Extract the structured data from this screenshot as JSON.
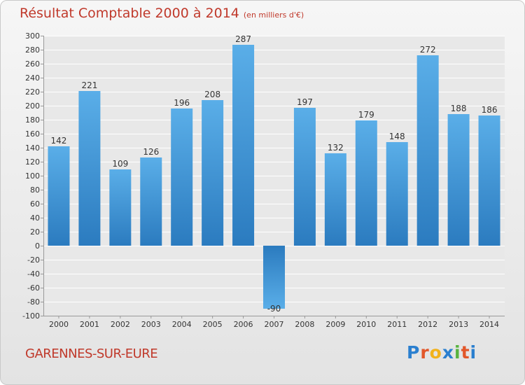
{
  "header": {
    "title": "Résultat Comptable 2000 à 2014",
    "unit": "(en milliers d'€)"
  },
  "footer": {
    "city": "GARENNES-SUR-EURE",
    "logo": [
      "P",
      "r",
      "o",
      "x",
      "i",
      "t",
      "i"
    ]
  },
  "colors": {
    "title": "#c0392b",
    "bar_top": "#5aaee8",
    "bar_bottom": "#2b7bbf"
  },
  "chart_data": {
    "type": "bar",
    "title": "Résultat Comptable 2000 à 2014",
    "subtitle": "(en milliers d'€)",
    "xlabel": "",
    "ylabel": "",
    "categories": [
      "2000",
      "2001",
      "2002",
      "2003",
      "2004",
      "2005",
      "2006",
      "2007",
      "2008",
      "2009",
      "2010",
      "2011",
      "2012",
      "2013",
      "2014"
    ],
    "values": [
      142,
      221,
      109,
      126,
      196,
      208,
      287,
      -90,
      197,
      132,
      179,
      148,
      272,
      188,
      186
    ],
    "ylim": [
      -100,
      300
    ],
    "ytick_step": 20,
    "grid": true
  }
}
